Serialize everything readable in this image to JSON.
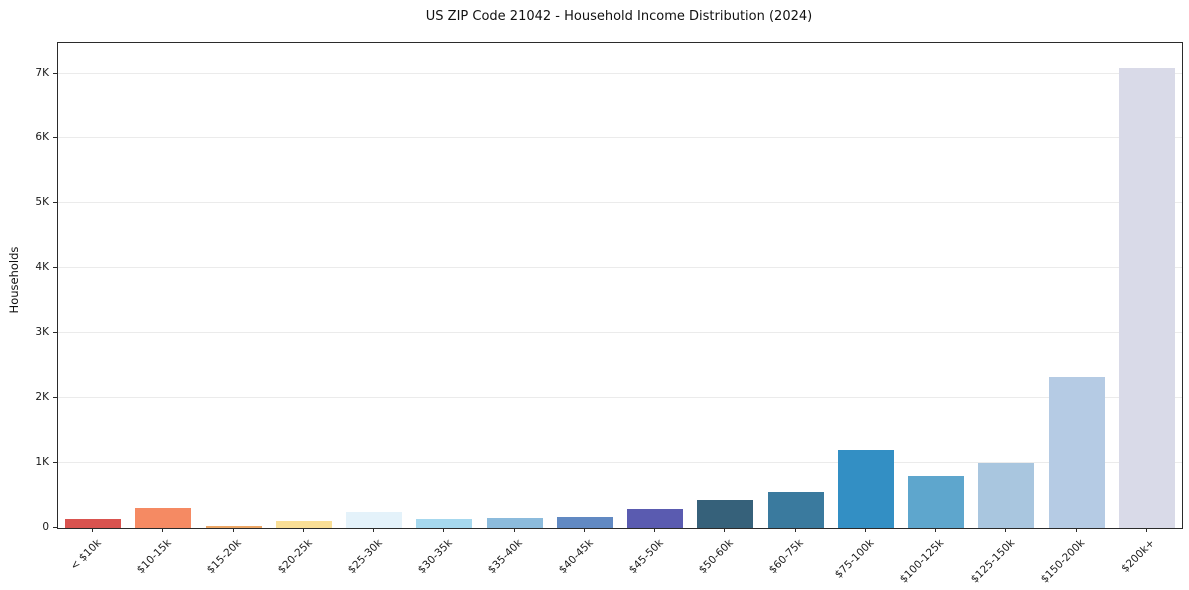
{
  "chart_data": {
    "type": "bar",
    "title": "US ZIP Code 21042 - Household Income Distribution (2024)",
    "xlabel": "",
    "ylabel": "Households",
    "categories": [
      "< $10k",
      "$10-15k",
      "$15-20k",
      "$20-25k",
      "$25-30k",
      "$30-35k",
      "$35-40k",
      "$40-45k",
      "$45-50k",
      "$50-60k",
      "$60-75k",
      "$75-100k",
      "$100-125k",
      "$125-150k",
      "$150-200k",
      "$200k+"
    ],
    "values": [
      140,
      310,
      30,
      110,
      250,
      145,
      150,
      165,
      290,
      435,
      560,
      1195,
      805,
      1000,
      2330,
      7090
    ],
    "colors": [
      "#d9534f",
      "#f58a63",
      "#eda766",
      "#fadf96",
      "#e4f2fa",
      "#a6d8ee",
      "#8cbbdc",
      "#6189c2",
      "#5a5bb0",
      "#36617a",
      "#3a7a9e",
      "#338fc4",
      "#5ea6cd",
      "#a9c6df",
      "#b5cbe4",
      "#d9dae8"
    ],
    "ylim": [
      0,
      7470
    ],
    "yticks": [
      {
        "value": 0,
        "label": "0"
      },
      {
        "value": 1000,
        "label": "1K"
      },
      {
        "value": 2000,
        "label": "2K"
      },
      {
        "value": 3000,
        "label": "3K"
      },
      {
        "value": 4000,
        "label": "4K"
      },
      {
        "value": 5000,
        "label": "5K"
      },
      {
        "value": 6000,
        "label": "6K"
      },
      {
        "value": 7000,
        "label": "7K"
      }
    ],
    "grid": "horizontal",
    "grid_color": "#ebebeb",
    "axis_color": "#2b2b2b",
    "background": "#ffffff",
    "legend": "none",
    "bar_label_rotation_deg": 45
  }
}
